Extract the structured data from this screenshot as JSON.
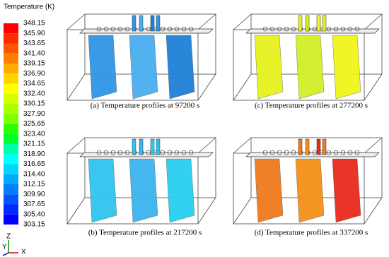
{
  "colorbar": {
    "title": "Temperature (K)",
    "labels": [
      "348.15",
      "345.90",
      "343.65",
      "341.40",
      "339.15",
      "336.90",
      "334.65",
      "332.40",
      "330.15",
      "327.90",
      "325.65",
      "323.40",
      "321.15",
      "318.90",
      "316.65",
      "314.40",
      "312.15",
      "309.90",
      "307.65",
      "305.40",
      "303.15"
    ],
    "colors": [
      "#ff0000",
      "#ff2b00",
      "#ff5500",
      "#ff8000",
      "#ffaa00",
      "#ffd500",
      "#ffff00",
      "#d5ff00",
      "#aaff00",
      "#80ff00",
      "#2bff00",
      "#00ff2b",
      "#00ffaa",
      "#00ffff",
      "#00d5ff",
      "#00aaff",
      "#0080ff",
      "#0055ff",
      "#002bff",
      "#0000ff"
    ]
  },
  "panels": [
    {
      "caption": "(a) Temperature profiles at 97200 s"
    },
    {
      "caption": "(c) Temperature profiles at 277200 s"
    },
    {
      "caption": "(b) Temperature profiles at 217200 s"
    },
    {
      "caption": "(d) Temperature profiles at 337200 s"
    }
  ],
  "axes": {
    "x": "X",
    "y": "Y",
    "z": "Z"
  }
}
